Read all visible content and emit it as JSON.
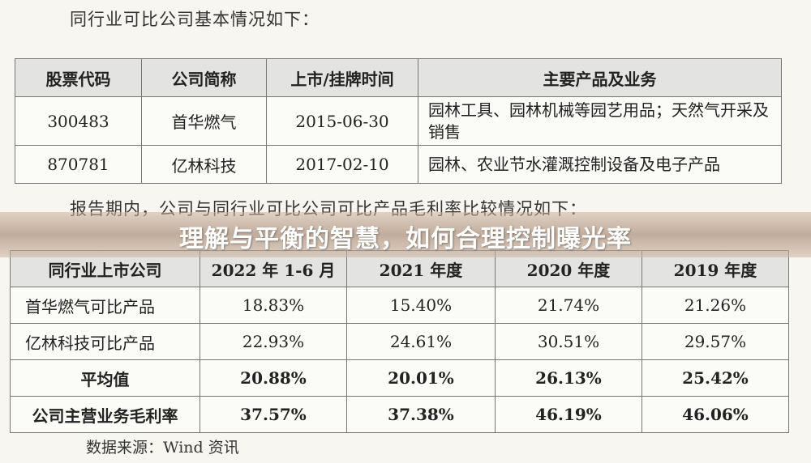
{
  "heading1": "同行业可比公司基本情况如下：",
  "table1": {
    "headers": [
      "股票代码",
      "公司简称",
      "上市/挂牌时间",
      "主要产品及业务"
    ],
    "rows": [
      [
        "300483",
        "首华燃气",
        "2015-06-30",
        "园林工具、园林机械等园艺用品；天然气开采及销售"
      ],
      [
        "870781",
        "亿林科技",
        "2017-02-10",
        "园林、农业节水灌溉控制设备及电子产品"
      ]
    ]
  },
  "heading2": "报告期内，公司与同行业可比公司可比产品毛利率比较情况如下：",
  "table2": {
    "headers": [
      "同行业上市公司",
      "2022 年 1-6 月",
      "2021 年度",
      "2020 年度",
      "2019 年度"
    ],
    "rows": [
      [
        "首华燃气可比产品",
        "18.83%",
        "15.40%",
        "21.74%",
        "21.26%"
      ],
      [
        "亿林科技可比产品",
        "22.93%",
        "24.61%",
        "30.51%",
        "29.57%"
      ],
      [
        "平均值",
        "20.88%",
        "20.01%",
        "26.13%",
        "25.42%"
      ],
      [
        "公司主营业务毛利率",
        "37.57%",
        "37.38%",
        "46.19%",
        "46.06%"
      ]
    ]
  },
  "footer": "数据来源：Wind 资讯",
  "banner_title": "理解与平衡的智慧，如何合理控制曝光率"
}
